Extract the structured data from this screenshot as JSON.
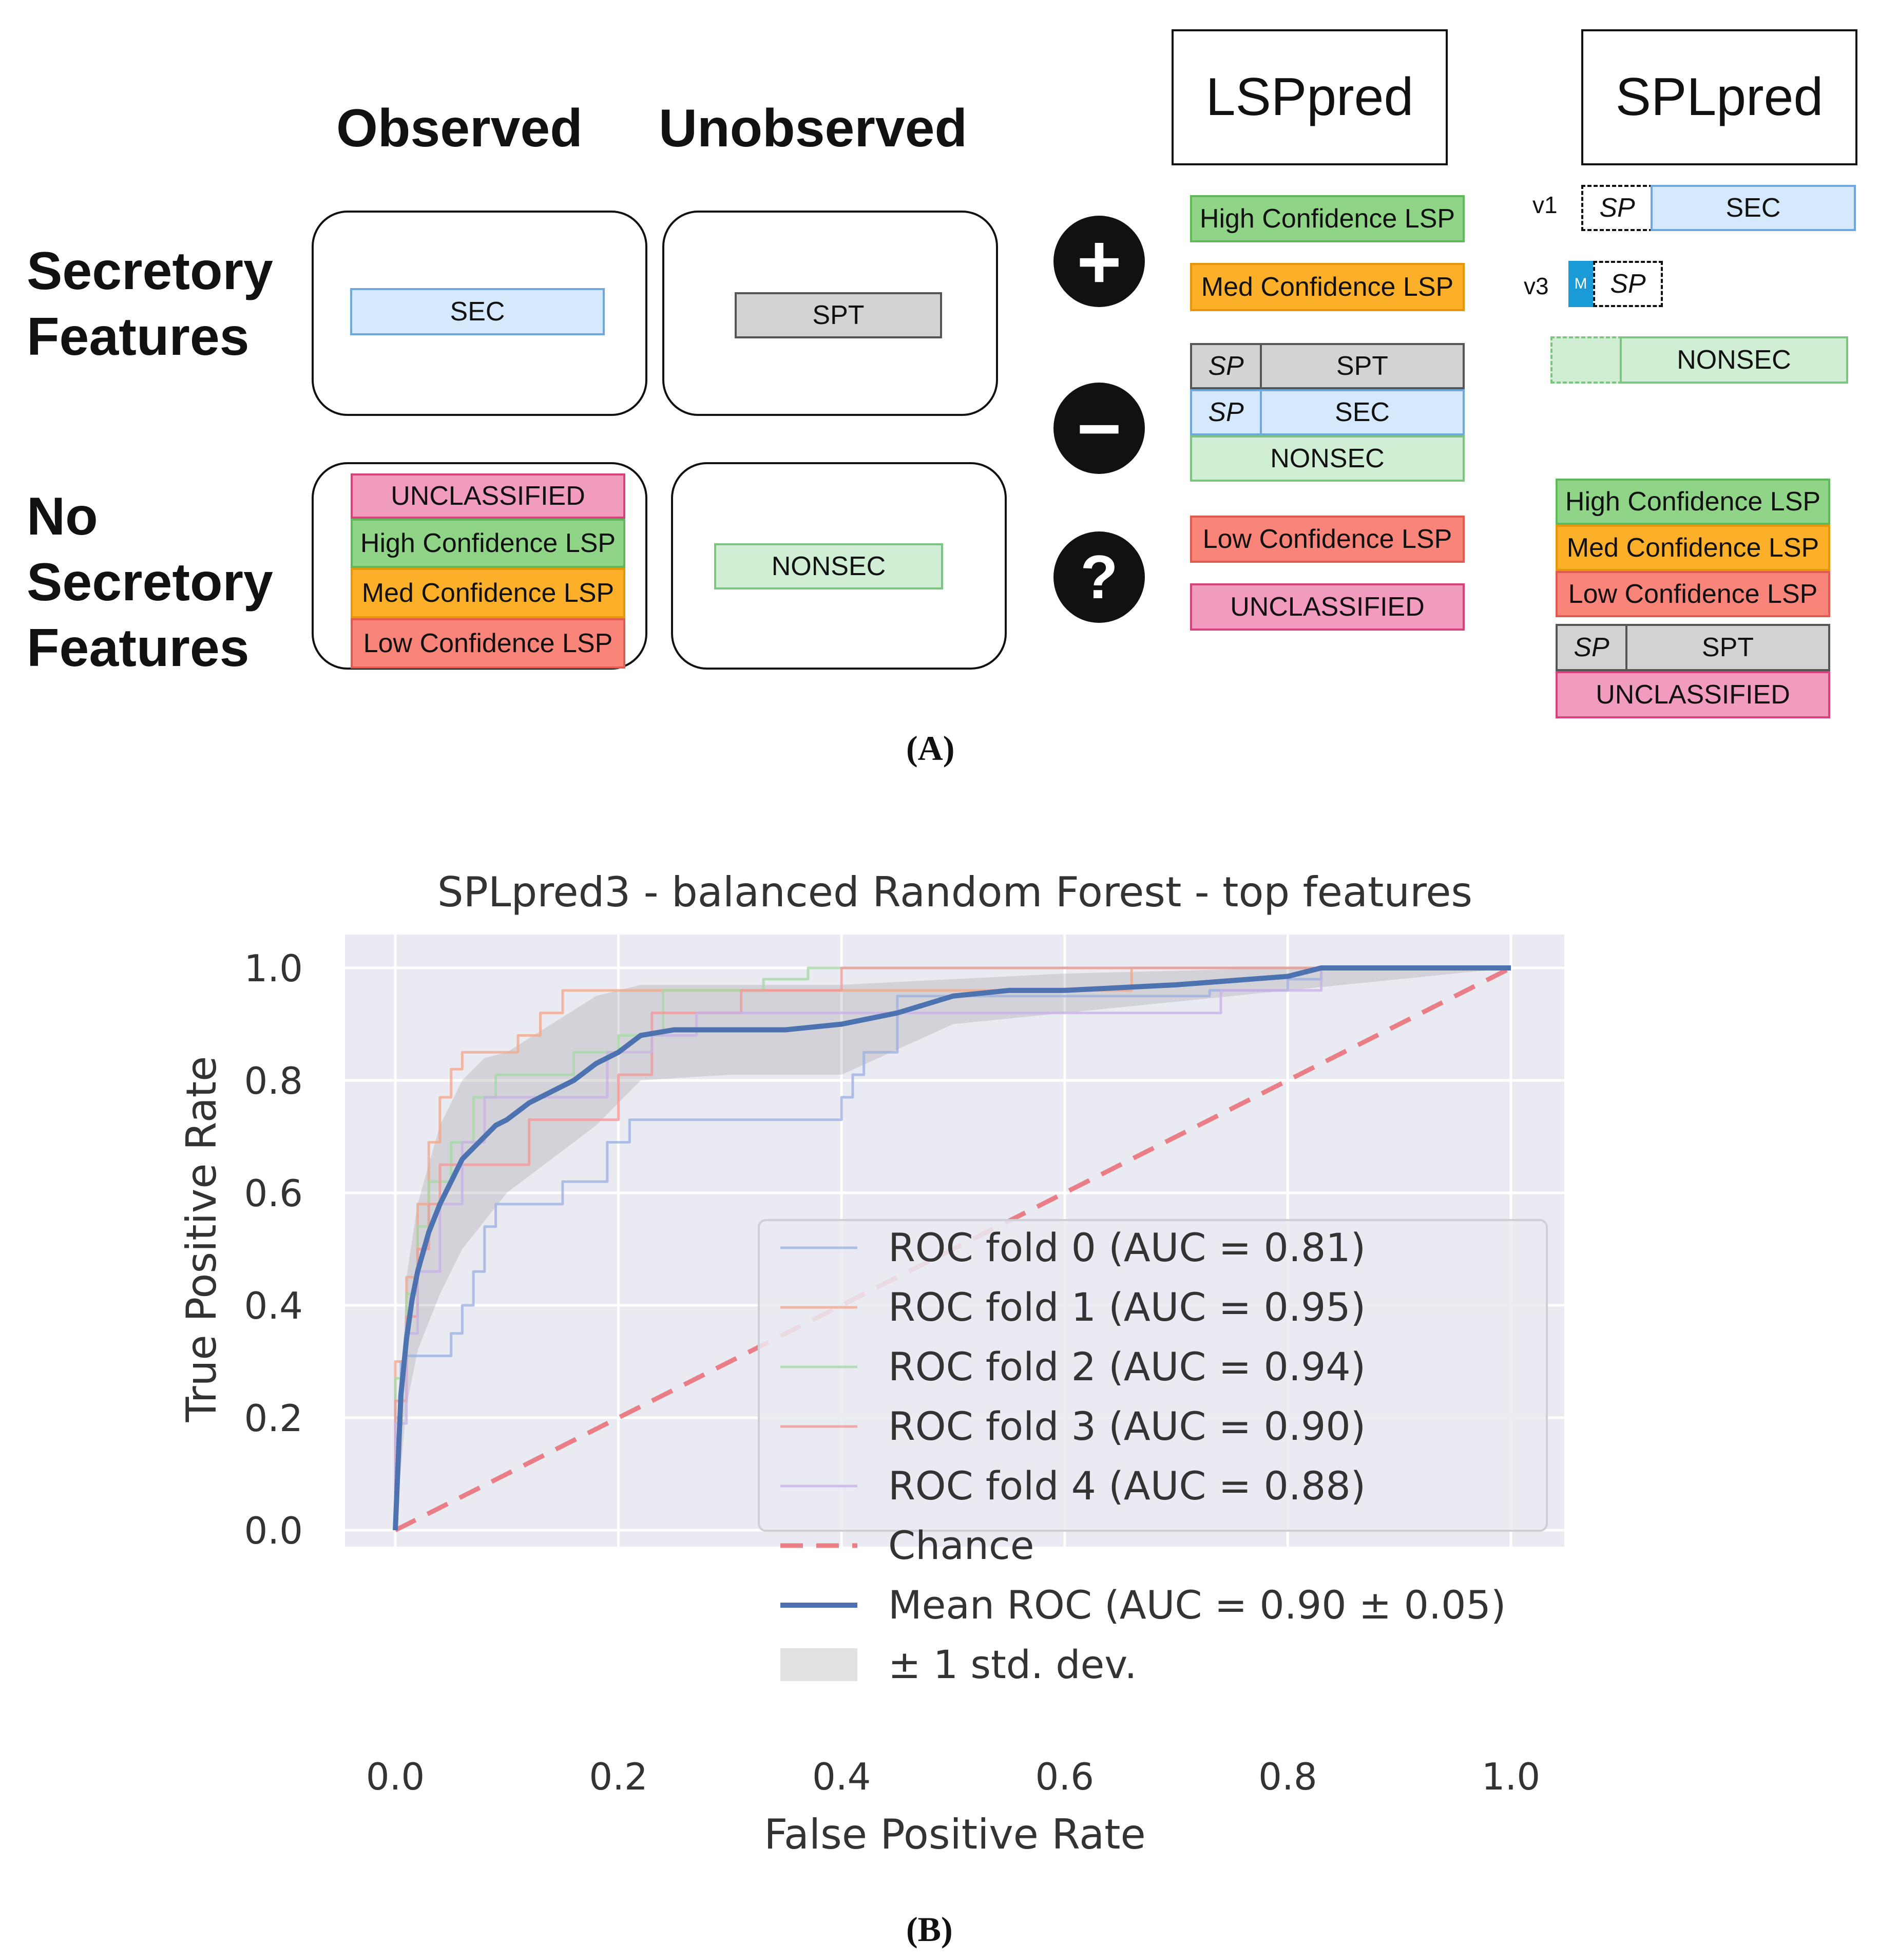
{
  "panelA": {
    "col_headers": {
      "observed": "Observed",
      "unobserved": "Unobserved"
    },
    "row_labels": {
      "secretory": "Secretory Features",
      "no_secretory": "No Secretory Features"
    },
    "cells": {
      "sec_observed": "SEC",
      "sec_unobserved": "SPT",
      "nosec_observed": [
        "UNCLASSIFIED",
        "High Confidence LSP",
        "Med Confidence LSP",
        "Low Confidence LSP"
      ],
      "nosec_unobserved": "NONSEC"
    },
    "symbols": {
      "plus": "+",
      "minus": "−",
      "question": "?"
    },
    "lsppred": {
      "title": "LSPpred",
      "positive": [
        "High Confidence LSP",
        "Med Confidence LSP"
      ],
      "negative": {
        "sp": "SP",
        "spt": "SPT",
        "sec": "SEC",
        "nonsec": "NONSEC"
      },
      "unknown": [
        "Low Confidence LSP",
        "UNCLASSIFIED"
      ]
    },
    "splpred": {
      "title": "SPLpred",
      "v1_label": "v1",
      "v3_label": "v3",
      "sp": "SP",
      "m": "M",
      "sec": "SEC",
      "nonsec": "NONSEC",
      "stack": [
        "High Confidence LSP",
        "Med Confidence LSP",
        "Low Confidence LSP"
      ],
      "spt": "SPT",
      "unclassified": "UNCLASSIFIED"
    },
    "caption": "(A)"
  },
  "panelB": {
    "caption": "(B)"
  },
  "colors": {
    "sec": "#d6e8fb",
    "spt": "#d3d3d3",
    "nonsec": "#cfeed3",
    "unclassified": "#f19bbe",
    "high": "#8fd487",
    "med": "#fcb02a",
    "low": "#f8847a",
    "m_box": "#1a9ad6",
    "plot_bg": "#eaeaf2",
    "mean": "#4c72b0",
    "chance": "#e8636a"
  },
  "chart_data": {
    "type": "line",
    "title": "SPLpred3 - balanced Random Forest - top features",
    "xlabel": "False Positive Rate",
    "ylabel": "True Positive Rate",
    "xlim": [
      0.0,
      1.0
    ],
    "ylim": [
      0.0,
      1.0
    ],
    "xticks": [
      "0.0",
      "0.2",
      "0.4",
      "0.6",
      "0.8",
      "1.0"
    ],
    "yticks": [
      "0.0",
      "0.2",
      "0.4",
      "0.6",
      "0.8",
      "1.0"
    ],
    "grid": true,
    "legend_position": "lower-right",
    "series": [
      {
        "name": "ROC fold 0 (AUC = 0.81)",
        "color": "#9fb2e0",
        "opacity": 0.8,
        "x": [
          0,
          0,
          0.005,
          0.005,
          0.01,
          0.01,
          0.02,
          0.02,
          0.05,
          0.05,
          0.06,
          0.06,
          0.07,
          0.07,
          0.08,
          0.08,
          0.09,
          0.09,
          0.15,
          0.15,
          0.19,
          0.19,
          0.21,
          0.21,
          0.4,
          0.4,
          0.41,
          0.41,
          0.42,
          0.42,
          0.45,
          0.45,
          0.73,
          0.73,
          0.8,
          0.8,
          0.83,
          0.83,
          1.0
        ],
        "y": [
          0,
          0.2,
          0.2,
          0.3,
          0.3,
          0.31,
          0.31,
          0.31,
          0.31,
          0.35,
          0.35,
          0.4,
          0.4,
          0.46,
          0.46,
          0.54,
          0.54,
          0.58,
          0.58,
          0.62,
          0.62,
          0.69,
          0.69,
          0.73,
          0.73,
          0.77,
          0.77,
          0.81,
          0.81,
          0.85,
          0.85,
          0.95,
          0.95,
          0.96,
          0.96,
          0.98,
          0.98,
          1.0,
          1.0
        ]
      },
      {
        "name": "ROC fold 1 (AUC = 0.95)",
        "color": "#f2a98c",
        "opacity": 0.8,
        "x": [
          0,
          0,
          0.01,
          0.01,
          0.02,
          0.02,
          0.03,
          0.03,
          0.04,
          0.04,
          0.05,
          0.05,
          0.06,
          0.06,
          0.07,
          0.07,
          0.11,
          0.11,
          0.13,
          0.13,
          0.15,
          0.15,
          0.22,
          0.22,
          0.66,
          0.66,
          1.0
        ],
        "y": [
          0,
          0.3,
          0.3,
          0.45,
          0.45,
          0.58,
          0.58,
          0.69,
          0.69,
          0.77,
          0.77,
          0.82,
          0.82,
          0.85,
          0.85,
          0.85,
          0.85,
          0.88,
          0.88,
          0.92,
          0.92,
          0.96,
          0.96,
          0.96,
          0.96,
          1.0,
          1.0
        ]
      },
      {
        "name": "ROC fold 2 (AUC = 0.94)",
        "color": "#a6d9a6",
        "opacity": 0.8,
        "x": [
          0,
          0,
          0.01,
          0.01,
          0.02,
          0.02,
          0.03,
          0.03,
          0.05,
          0.05,
          0.07,
          0.07,
          0.09,
          0.09,
          0.12,
          0.12,
          0.16,
          0.16,
          0.2,
          0.2,
          0.24,
          0.24,
          0.33,
          0.33,
          0.37,
          0.37,
          1.0
        ],
        "y": [
          0,
          0.27,
          0.27,
          0.42,
          0.42,
          0.54,
          0.54,
          0.62,
          0.62,
          0.69,
          0.69,
          0.77,
          0.77,
          0.81,
          0.81,
          0.81,
          0.81,
          0.85,
          0.85,
          0.88,
          0.88,
          0.96,
          0.96,
          0.98,
          0.98,
          1.0,
          1.0
        ]
      },
      {
        "name": "ROC fold 3 (AUC = 0.90)",
        "color": "#f29a9a",
        "opacity": 0.8,
        "x": [
          0,
          0,
          0.01,
          0.01,
          0.02,
          0.02,
          0.03,
          0.03,
          0.04,
          0.04,
          0.07,
          0.07,
          0.12,
          0.12,
          0.2,
          0.2,
          0.23,
          0.23,
          0.31,
          0.31,
          0.4,
          0.4,
          1.0
        ],
        "y": [
          0,
          0.23,
          0.23,
          0.38,
          0.38,
          0.5,
          0.5,
          0.58,
          0.58,
          0.65,
          0.65,
          0.65,
          0.65,
          0.73,
          0.73,
          0.81,
          0.81,
          0.92,
          0.92,
          0.96,
          0.96,
          1.0,
          1.0
        ]
      },
      {
        "name": "ROC fold 4 (AUC = 0.88)",
        "color": "#c7b3e6",
        "opacity": 0.8,
        "x": [
          0,
          0,
          0.01,
          0.01,
          0.02,
          0.02,
          0.04,
          0.04,
          0.06,
          0.06,
          0.08,
          0.08,
          0.12,
          0.12,
          0.19,
          0.19,
          0.23,
          0.23,
          0.27,
          0.27,
          0.74,
          0.74,
          0.83,
          0.83,
          1.0
        ],
        "y": [
          0,
          0.19,
          0.19,
          0.35,
          0.35,
          0.46,
          0.46,
          0.58,
          0.58,
          0.69,
          0.69,
          0.77,
          0.77,
          0.77,
          0.77,
          0.85,
          0.85,
          0.88,
          0.88,
          0.92,
          0.92,
          0.96,
          0.96,
          1.0,
          1.0
        ]
      },
      {
        "name": "Chance",
        "color": "#e8636a",
        "dashed": true,
        "opacity": 0.8,
        "x": [
          0,
          1
        ],
        "y": [
          0,
          1
        ]
      },
      {
        "name": "Mean ROC (AUC = 0.90 ± 0.05)",
        "color": "#4c72b0",
        "opacity": 1.0,
        "x": [
          0.0,
          0.005,
          0.01,
          0.015,
          0.02,
          0.03,
          0.04,
          0.05,
          0.06,
          0.07,
          0.08,
          0.09,
          0.1,
          0.12,
          0.14,
          0.16,
          0.18,
          0.2,
          0.22,
          0.25,
          0.3,
          0.35,
          0.4,
          0.45,
          0.5,
          0.55,
          0.6,
          0.7,
          0.8,
          0.83,
          0.9,
          1.0
        ],
        "y": [
          0.0,
          0.24,
          0.34,
          0.41,
          0.46,
          0.53,
          0.58,
          0.62,
          0.66,
          0.68,
          0.7,
          0.72,
          0.73,
          0.76,
          0.78,
          0.8,
          0.83,
          0.85,
          0.88,
          0.89,
          0.89,
          0.89,
          0.9,
          0.92,
          0.95,
          0.96,
          0.96,
          0.97,
          0.985,
          1.0,
          1.0,
          1.0
        ]
      },
      {
        "name": "± 1 std. dev.",
        "type": "band",
        "color": "#8c8c8c",
        "opacity": 0.25,
        "x": [
          0.0,
          0.01,
          0.02,
          0.04,
          0.06,
          0.08,
          0.1,
          0.14,
          0.18,
          0.22,
          0.3,
          0.4,
          0.5,
          0.6,
          0.8,
          1.0
        ],
        "upper": [
          0.0,
          0.45,
          0.58,
          0.72,
          0.8,
          0.84,
          0.85,
          0.9,
          0.95,
          0.97,
          0.97,
          0.97,
          0.98,
          0.99,
          1.0,
          1.0
        ],
        "lower": [
          0.0,
          0.22,
          0.32,
          0.42,
          0.5,
          0.55,
          0.6,
          0.66,
          0.72,
          0.8,
          0.81,
          0.81,
          0.9,
          0.92,
          0.96,
          1.0
        ]
      }
    ]
  }
}
